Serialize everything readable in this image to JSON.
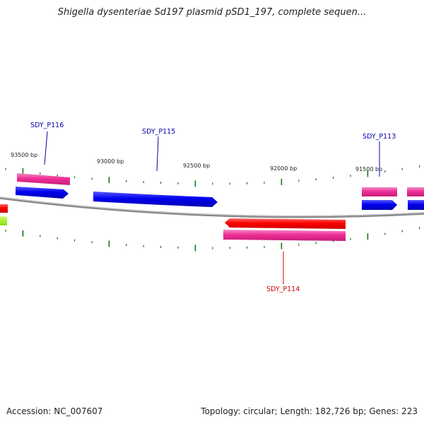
{
  "title": "Shigella dysenteriae Sd197 plasmid pSD1_197, complete sequen...",
  "footer": {
    "accession": "Accession: NC_007607",
    "summary": "Topology: circular; Length: 182,726 bp; Genes: 223"
  },
  "colors": {
    "forward_gene": "#0000ee",
    "reverse_gene": "#ff0000",
    "cds": "#ee2f96",
    "other_feature": "#99ee22",
    "tick": "#117711",
    "backbone": "#888888",
    "forward_label": "#0000aa",
    "reverse_label": "#cc0000"
  },
  "scale_labels": [
    "93500 bp",
    "93000 bp",
    "92500 bp",
    "92000 bp",
    "91500 bp"
  ],
  "gene_labels": [
    {
      "id": "SDY_P116",
      "strand": "forward"
    },
    {
      "id": "SDY_P115",
      "strand": "forward"
    },
    {
      "id": "SDY_P113",
      "strand": "forward"
    },
    {
      "id": "SDY_P114",
      "strand": "reverse"
    }
  ]
}
